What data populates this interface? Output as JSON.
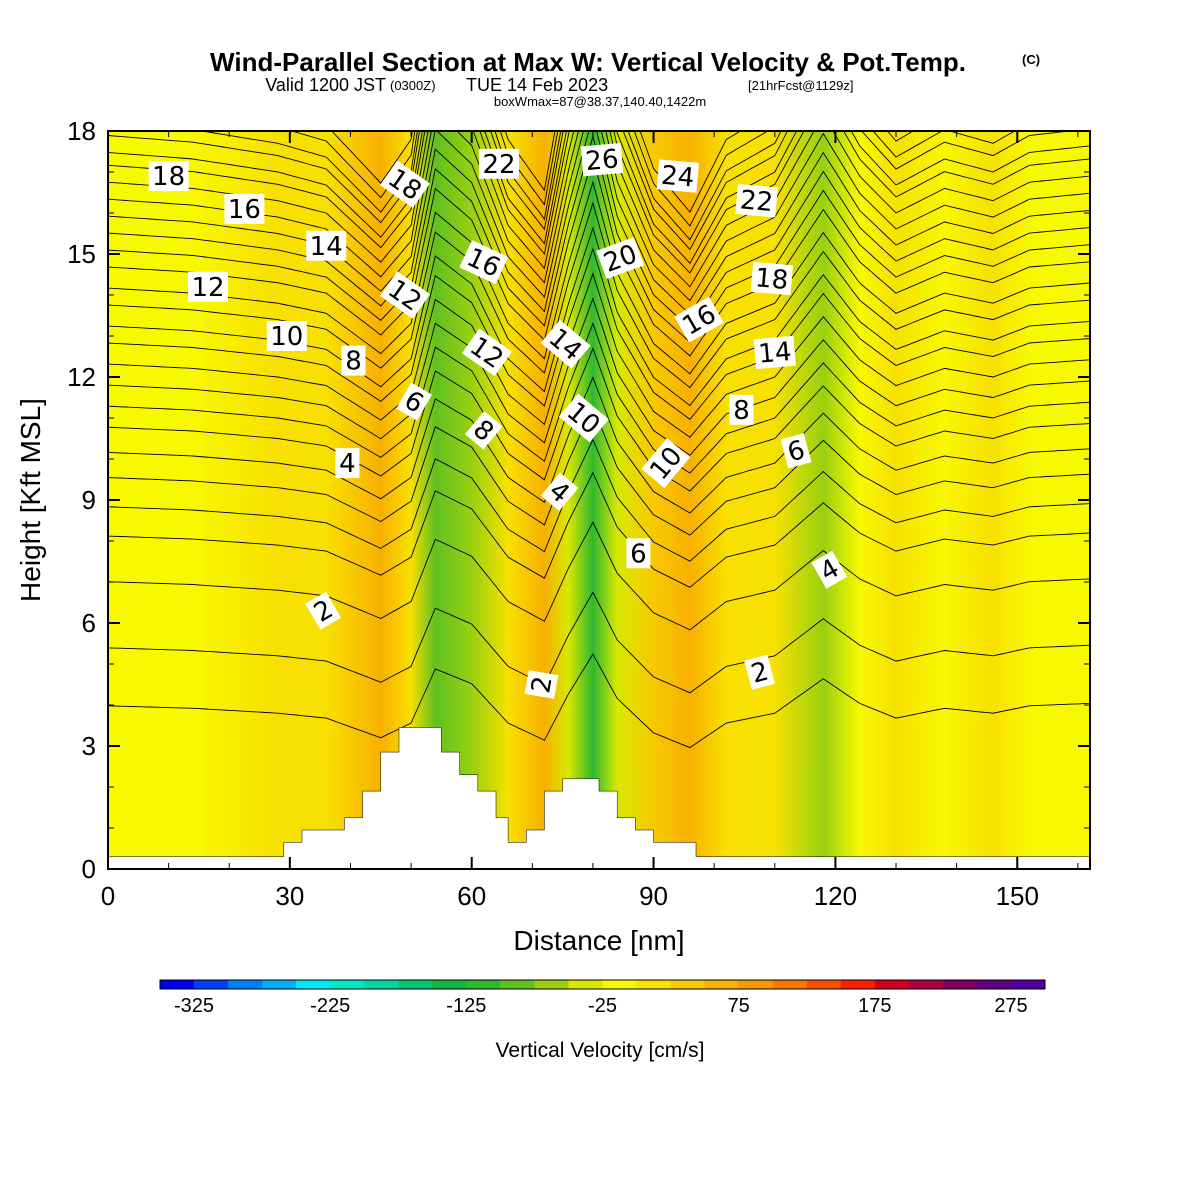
{
  "title": {
    "main": "Wind-Parallel Section at Max W: Vertical Velocity & Pot.Temp.",
    "copyright": "(C)",
    "valid_prefix": "Valid 1200 JST",
    "valid_z": "(0300Z)",
    "valid_date": "TUE 14 Feb 2023",
    "forecast": "[21hrFcst@1129z]",
    "box": "boxWmax=87@38.37,140.40,1422m"
  },
  "chart_data": {
    "type": "heatmap",
    "xlabel": "Distance [nm]",
    "ylabel": "Height [Kft MSL]",
    "xlim": [
      0,
      162
    ],
    "ylim": [
      0,
      18
    ],
    "xticks": [
      0,
      30,
      60,
      90,
      120,
      150
    ],
    "yticks": [
      0,
      3,
      6,
      9,
      12,
      15,
      18
    ],
    "colorbar": {
      "label": "Vertical Velocity [cm/s]",
      "tick_values": [
        -325,
        -225,
        -125,
        -25,
        75,
        175,
        275
      ],
      "range": [
        -350,
        300
      ],
      "colors": [
        "#0000f0",
        "#0040f8",
        "#0080f8",
        "#00b0f8",
        "#00e8f8",
        "#00e8c8",
        "#00d8a0",
        "#00c870",
        "#10b840",
        "#30b830",
        "#60c020",
        "#98d010",
        "#d8e800",
        "#f8f800",
        "#f8e000",
        "#f8c800",
        "#f8b000",
        "#f89800",
        "#f87800",
        "#f85000",
        "#f82000",
        "#d00020",
        "#a80040",
        "#800060",
        "#600080",
        "#5000a0"
      ]
    },
    "velocity_bands": [
      {
        "x": 0,
        "w": -15
      },
      {
        "x": 14,
        "w": -10
      },
      {
        "x": 28,
        "w": 0
      },
      {
        "x": 36,
        "w": 10
      },
      {
        "x": 45,
        "w": 50
      },
      {
        "x": 50,
        "w": 20
      },
      {
        "x": 54,
        "w": -90
      },
      {
        "x": 60,
        "w": -60
      },
      {
        "x": 66,
        "w": 20
      },
      {
        "x": 72,
        "w": 55
      },
      {
        "x": 76,
        "w": -40
      },
      {
        "x": 80,
        "w": -120
      },
      {
        "x": 84,
        "w": -30
      },
      {
        "x": 90,
        "w": 40
      },
      {
        "x": 96,
        "w": 70
      },
      {
        "x": 102,
        "w": 20
      },
      {
        "x": 110,
        "w": 0
      },
      {
        "x": 118,
        "w": -70
      },
      {
        "x": 124,
        "w": -20
      },
      {
        "x": 130,
        "w": 10
      },
      {
        "x": 138,
        "w": -10
      },
      {
        "x": 146,
        "w": 0
      },
      {
        "x": 152,
        "w": -15
      },
      {
        "x": 162,
        "w": -20
      }
    ],
    "terrain": [
      [
        0,
        0.3
      ],
      [
        29,
        0.3
      ],
      [
        29,
        0.65
      ],
      [
        32,
        0.65
      ],
      [
        32,
        0.95
      ],
      [
        39,
        0.95
      ],
      [
        39,
        1.25
      ],
      [
        42,
        1.25
      ],
      [
        42,
        1.9
      ],
      [
        45,
        1.9
      ],
      [
        45,
        2.85
      ],
      [
        48,
        2.85
      ],
      [
        48,
        3.45
      ],
      [
        55,
        3.45
      ],
      [
        55,
        2.85
      ],
      [
        58,
        2.85
      ],
      [
        58,
        2.3
      ],
      [
        61,
        2.3
      ],
      [
        61,
        1.9
      ],
      [
        64,
        1.9
      ],
      [
        64,
        1.25
      ],
      [
        66,
        1.25
      ],
      [
        66,
        0.65
      ],
      [
        69,
        0.65
      ],
      [
        69,
        0.95
      ],
      [
        72,
        0.95
      ],
      [
        72,
        1.9
      ],
      [
        75,
        1.9
      ],
      [
        75,
        2.2
      ],
      [
        81,
        2.2
      ],
      [
        81,
        1.9
      ],
      [
        84,
        1.9
      ],
      [
        84,
        1.25
      ],
      [
        87,
        1.25
      ],
      [
        87,
        0.95
      ],
      [
        90,
        0.95
      ],
      [
        90,
        0.65
      ],
      [
        97,
        0.65
      ],
      [
        97,
        0.3
      ],
      [
        162,
        0.3
      ]
    ],
    "theta_contours": {
      "levels": [
        1,
        2,
        3,
        4,
        5,
        6,
        7,
        8,
        9,
        10,
        11,
        12,
        13,
        14,
        15,
        16,
        17,
        18,
        19,
        20,
        21,
        22,
        23,
        24,
        25,
        26,
        27
      ],
      "base_heights_kft": [
        3.8,
        5.2,
        6.8,
        7.9,
        8.6,
        9.3,
        9.9,
        10.5,
        11.0,
        11.5,
        12.0,
        12.5,
        12.9,
        13.4,
        13.8,
        14.3,
        14.7,
        15.1,
        15.5,
        15.9,
        16.3,
        16.7,
        17.0,
        17.4,
        17.7,
        18.1,
        18.5
      ],
      "labels": [
        {
          "text": "18",
          "x": 10,
          "y": 16.9,
          "rot": 0
        },
        {
          "text": "16",
          "x": 22.5,
          "y": 16.1,
          "rot": 0
        },
        {
          "text": "14",
          "x": 36,
          "y": 15.2,
          "rot": 0
        },
        {
          "text": "12",
          "x": 16.5,
          "y": 14.2,
          "rot": 0
        },
        {
          "text": "10",
          "x": 29.5,
          "y": 13.0,
          "rot": 0
        },
        {
          "text": "8",
          "x": 40.5,
          "y": 12.4,
          "rot": 0
        },
        {
          "text": "6",
          "x": 50.5,
          "y": 11.4,
          "rot": 30
        },
        {
          "text": "4",
          "x": 39.5,
          "y": 9.9,
          "rot": 0
        },
        {
          "text": "2",
          "x": 35.5,
          "y": 6.3,
          "rot": -30
        },
        {
          "text": "18",
          "x": 49,
          "y": 16.7,
          "rot": 35
        },
        {
          "text": "22",
          "x": 64.5,
          "y": 17.2,
          "rot": 0
        },
        {
          "text": "26",
          "x": 81.5,
          "y": 17.3,
          "rot": -5
        },
        {
          "text": "24",
          "x": 94,
          "y": 16.9,
          "rot": 5
        },
        {
          "text": "22",
          "x": 107,
          "y": 16.3,
          "rot": 5
        },
        {
          "text": "16",
          "x": 62,
          "y": 14.8,
          "rot": 25
        },
        {
          "text": "20",
          "x": 84.5,
          "y": 14.9,
          "rot": -20
        },
        {
          "text": "18",
          "x": 109.5,
          "y": 14.4,
          "rot": 5
        },
        {
          "text": "12",
          "x": 49,
          "y": 14.0,
          "rot": 35
        },
        {
          "text": "16",
          "x": 97.5,
          "y": 13.4,
          "rot": -30
        },
        {
          "text": "14",
          "x": 75.5,
          "y": 12.8,
          "rot": 40
        },
        {
          "text": "12",
          "x": 62.5,
          "y": 12.6,
          "rot": 35
        },
        {
          "text": "14",
          "x": 110,
          "y": 12.6,
          "rot": -5
        },
        {
          "text": "10",
          "x": 78.5,
          "y": 11.0,
          "rot": 40
        },
        {
          "text": "8",
          "x": 62,
          "y": 10.7,
          "rot": 40
        },
        {
          "text": "8",
          "x": 104.5,
          "y": 11.2,
          "rot": 0
        },
        {
          "text": "6",
          "x": 113.5,
          "y": 10.2,
          "rot": -15
        },
        {
          "text": "10",
          "x": 92,
          "y": 9.9,
          "rot": -50
        },
        {
          "text": "4",
          "x": 74.5,
          "y": 9.2,
          "rot": 40
        },
        {
          "text": "6",
          "x": 87.5,
          "y": 7.7,
          "rot": 0
        },
        {
          "text": "4",
          "x": 119,
          "y": 7.3,
          "rot": -30
        },
        {
          "text": "2",
          "x": 71.5,
          "y": 4.5,
          "rot": -80
        },
        {
          "text": "2",
          "x": 107.5,
          "y": 4.8,
          "rot": -15
        }
      ]
    }
  }
}
